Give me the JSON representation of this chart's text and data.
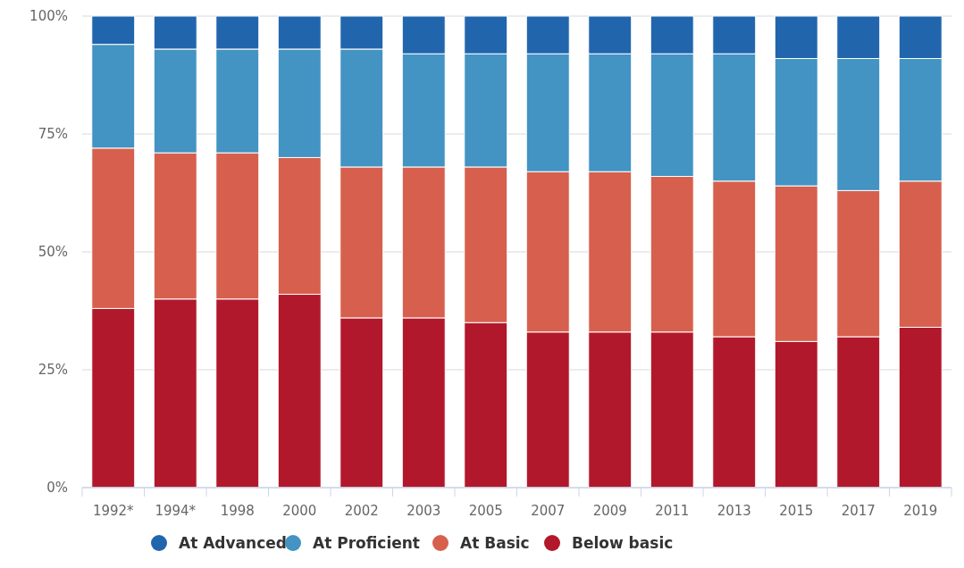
{
  "chart_data": {
    "type": "bar",
    "stacked": true,
    "categories": [
      "1992*",
      "1994*",
      "1998",
      "2000",
      "2002",
      "2003",
      "2005",
      "2007",
      "2009",
      "2011",
      "2013",
      "2015",
      "2017",
      "2019"
    ],
    "series": [
      {
        "name": "Below basic",
        "color": "#b2182b",
        "values": [
          38,
          40,
          40,
          41,
          36,
          36,
          35,
          33,
          33,
          33,
          32,
          31,
          32,
          34
        ]
      },
      {
        "name": "At Basic",
        "color": "#d6604d",
        "values": [
          34,
          31,
          31,
          29,
          32,
          32,
          33,
          34,
          34,
          33,
          33,
          33,
          31,
          31
        ]
      },
      {
        "name": "At Proficient",
        "color": "#4393c3",
        "values": [
          22,
          22,
          22,
          23,
          25,
          24,
          24,
          25,
          25,
          26,
          27,
          27,
          28,
          26
        ]
      },
      {
        "name": "At Advanced",
        "color": "#2166ac",
        "values": [
          6,
          7,
          7,
          7,
          7,
          8,
          8,
          8,
          8,
          8,
          8,
          9,
          9,
          9
        ]
      }
    ],
    "ylim": [
      0,
      100
    ],
    "yticks": [
      {
        "value": 0,
        "label": "0%"
      },
      {
        "value": 25,
        "label": "25%"
      },
      {
        "value": 50,
        "label": "50%"
      },
      {
        "value": 75,
        "label": "75%"
      },
      {
        "value": 100,
        "label": "100%"
      }
    ],
    "grid": "y",
    "legend": "bottom"
  }
}
